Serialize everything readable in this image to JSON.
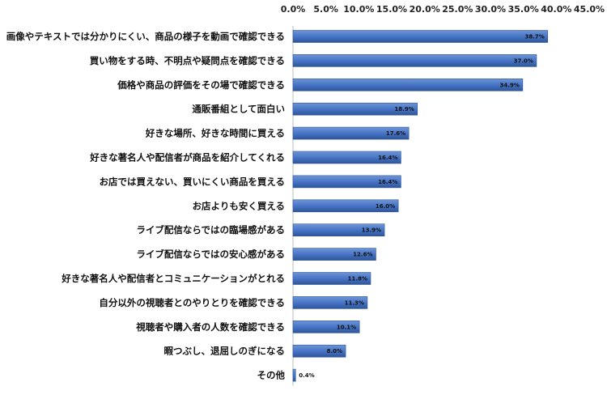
{
  "chart_data": {
    "type": "bar",
    "orientation": "horizontal",
    "categories": [
      "画像やテキストでは分かりにくい、商品の様子を動画で確認できる",
      "買い物をする時、不明点や疑問点を確認できる",
      "価格や商品の評価をその場で確認できる",
      "通販番組として面白い",
      "好きな場所、好きな時間に買える",
      "好きな著名人や配信者が商品を紹介してくれる",
      "お店では買えない、買いにくい商品を買える",
      "お店よりも安く買える",
      "ライブ配信ならではの臨場感がある",
      "ライブ配信ならではの安心感がある",
      "好きな著名人や配信者とコミュニケーションがとれる",
      "自分以外の視聴者とのやりとりを確認できる",
      "視聴者や購入者の人数を確認できる",
      "暇つぶし、退屈しのぎになる",
      "その他"
    ],
    "values": [
      38.7,
      37.0,
      34.9,
      18.9,
      17.6,
      16.4,
      16.4,
      16.0,
      13.9,
      12.6,
      11.8,
      11.3,
      10.1,
      8.0,
      0.4
    ],
    "data_labels": [
      "38.7%",
      "37.0%",
      "34.9%",
      "18.9%",
      "17.6%",
      "16.4%",
      "16.4%",
      "16.0%",
      "13.9%",
      "12.6%",
      "11.8%",
      "11.3%",
      "10.1%",
      "8.0%",
      "0.4%"
    ],
    "x_ticks": [
      0,
      5,
      10,
      15,
      20,
      25,
      30,
      35,
      40,
      45
    ],
    "x_tick_labels": [
      "0.0%",
      "5.0%",
      "10.0%",
      "15.0%",
      "20.0%",
      "25.0%",
      "30.0%",
      "35.0%",
      "40.0%",
      "45.0%"
    ],
    "xlim": [
      0,
      45
    ],
    "x_axis_position": "top",
    "grid": false,
    "legend": "none",
    "title": "",
    "xlabel": "",
    "ylabel": "",
    "bar_color": "#4472C4",
    "bar_color_dark": "#2F5597"
  }
}
